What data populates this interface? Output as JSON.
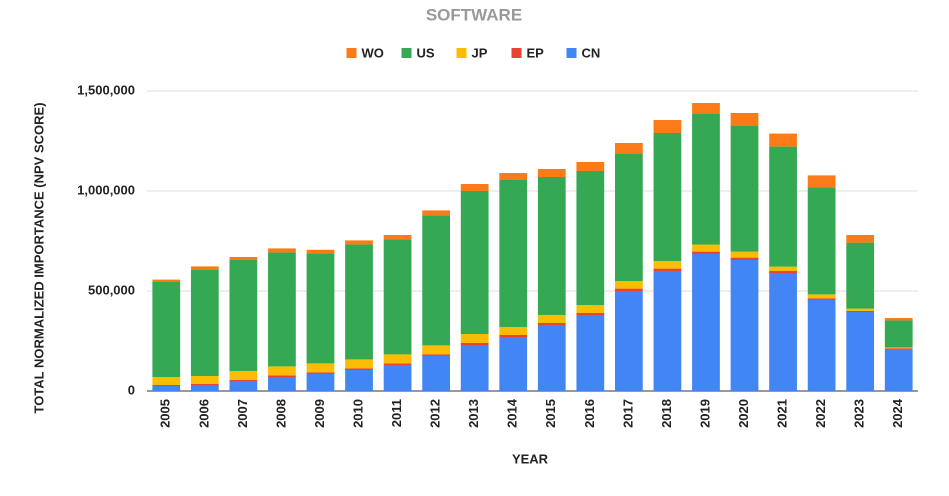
{
  "chart_data": {
    "type": "stacked_bar",
    "title": "SOFTWARE",
    "x_label": "YEAR",
    "y_label": "TOTAL NORMALIZED IMPORTANCE (NPV SCORE)",
    "categories": [
      "2005",
      "2006",
      "2007",
      "2008",
      "2009",
      "2010",
      "2011",
      "2012",
      "2013",
      "2014",
      "2015",
      "2016",
      "2017",
      "2018",
      "2019",
      "2020",
      "2021",
      "2022",
      "2023",
      "2024"
    ],
    "series": [
      {
        "name": "WO",
        "color": "#fa7b17",
        "values": [
          12000,
          18000,
          15000,
          20000,
          18000,
          20000,
          22000,
          25000,
          35000,
          35000,
          40000,
          45000,
          55000,
          65000,
          53000,
          63000,
          65000,
          60000,
          38000,
          12000
        ]
      },
      {
        "name": "US",
        "color": "#34a853",
        "values": [
          475000,
          530000,
          555000,
          570000,
          550000,
          575000,
          575000,
          650000,
          715000,
          735000,
          690000,
          670000,
          635000,
          640000,
          655000,
          630000,
          600000,
          535000,
          330000,
          135000
        ]
      },
      {
        "name": "JP",
        "color": "#fbbc04",
        "values": [
          40000,
          40000,
          45000,
          45000,
          45000,
          45000,
          45000,
          45000,
          45000,
          40000,
          40000,
          40000,
          38000,
          38000,
          35000,
          30000,
          22000,
          20000,
          12000,
          5000
        ]
      },
      {
        "name": "EP",
        "color": "#ea4335",
        "values": [
          5000,
          5000,
          5000,
          8000,
          8000,
          8000,
          8000,
          8000,
          10000,
          10000,
          10000,
          10000,
          12000,
          12000,
          12000,
          12000,
          10000,
          8000,
          5000,
          3000
        ]
      },
      {
        "name": "CN",
        "color": "#4285f4",
        "values": [
          25000,
          30000,
          50000,
          70000,
          85000,
          105000,
          130000,
          175000,
          230000,
          270000,
          330000,
          380000,
          500000,
          600000,
          685000,
          655000,
          590000,
          455000,
          395000,
          210000
        ]
      }
    ],
    "ylim": [
      0,
      1500000
    ],
    "yticks": [
      0,
      {
        "value": 500000,
        "label": "500,000"
      },
      {
        "value": 1000000,
        "label": "1,000,000"
      },
      {
        "value": 1500000,
        "label": "1,500,000"
      }
    ],
    "grid": true,
    "legend": "top"
  }
}
